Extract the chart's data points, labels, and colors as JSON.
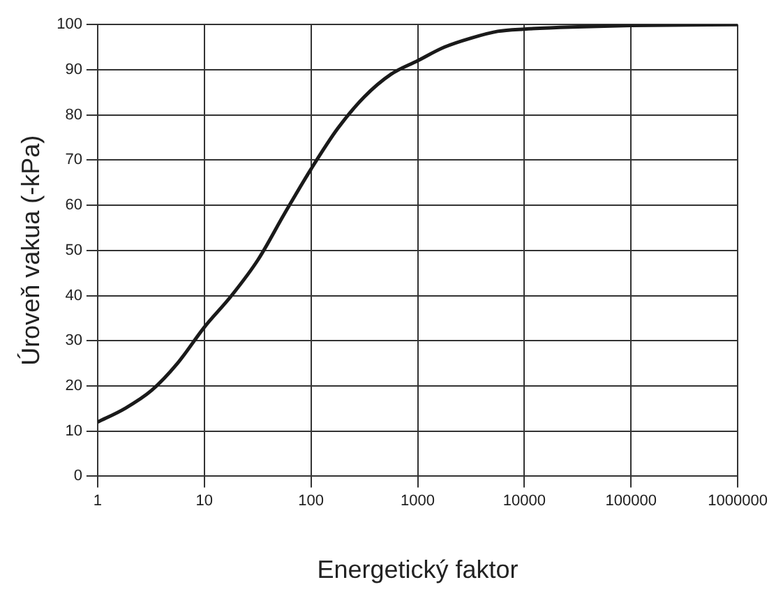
{
  "chart_data": {
    "type": "line",
    "xlabel": "Energetický faktor",
    "ylabel": "Úroveň vakua (-kPa)",
    "log": "x",
    "x": [
      1,
      1.8,
      3.2,
      5.6,
      10,
      18,
      32,
      56,
      100,
      178,
      316,
      562,
      1000,
      1778,
      3162,
      5623,
      10000,
      31623,
      100000,
      1000000
    ],
    "series": [
      {
        "color": "#1a1a1a",
        "values": [
          12,
          15,
          19,
          25,
          33,
          40,
          48,
          58,
          68,
          77,
          84,
          89,
          92,
          95,
          97,
          98.5,
          99,
          99.5,
          99.8,
          100
        ]
      }
    ],
    "xlim": [
      1,
      1000000
    ],
    "xticks": [
      1,
      10,
      100,
      1000,
      10000,
      100000,
      1000000
    ],
    "ylim": [
      0,
      100
    ],
    "yticks": [
      0,
      10,
      20,
      30,
      40,
      50,
      60,
      70,
      80,
      90,
      100
    ],
    "grid": true,
    "legend": false,
    "marker": "none",
    "line_style": "solid"
  }
}
